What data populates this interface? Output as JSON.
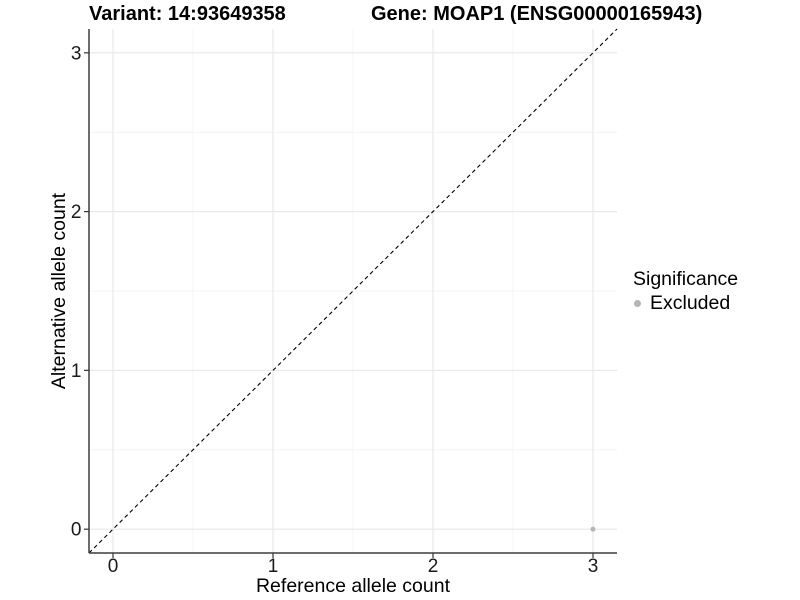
{
  "title": {
    "variant": "Variant: 14:93649358",
    "gene": "Gene: MOAP1 (ENSG00000165943)"
  },
  "axes": {
    "x": {
      "title": "Reference allele count"
    },
    "y": {
      "title": "Alternative allele count"
    }
  },
  "legend": {
    "title": "Significance",
    "items": [
      {
        "label": "Excluded",
        "marker": "dot-icon",
        "color": "#b5b5b5"
      }
    ]
  },
  "chart_data": {
    "type": "scatter",
    "title": "Variant: 14:93649358",
    "subtitle": "Gene: MOAP1 (ENSG00000165943)",
    "xlabel": "Reference allele count",
    "ylabel": "Alternative allele count",
    "xlim": [
      -0.15,
      3.15
    ],
    "ylim": [
      -0.15,
      3.15
    ],
    "x_ticks": [
      0,
      1,
      2,
      3
    ],
    "y_ticks": [
      0,
      1,
      2,
      3
    ],
    "x_minor_ticks": [
      0.5,
      1.5,
      2.5
    ],
    "y_minor_ticks": [
      0.5,
      1.5,
      2.5
    ],
    "grid": "major+minor",
    "legend_position": "right",
    "series": [
      {
        "name": "Excluded",
        "color": "#b5b5b5",
        "points": [
          {
            "x": 3,
            "y": 0
          }
        ]
      }
    ],
    "reference_line": {
      "type": "identity y=x",
      "from": [
        -0.15,
        -0.15
      ],
      "to": [
        3.15,
        3.15
      ],
      "style": "dashed",
      "color": "#000000"
    }
  },
  "colors": {
    "background": "#ffffff",
    "axis_line": "#3d3d3d",
    "grid_major": "#e8e8e8",
    "grid_minor": "#f4f4f4",
    "tick": "#333333",
    "text": "#1a1a1a",
    "point": "#b5b5b5"
  }
}
